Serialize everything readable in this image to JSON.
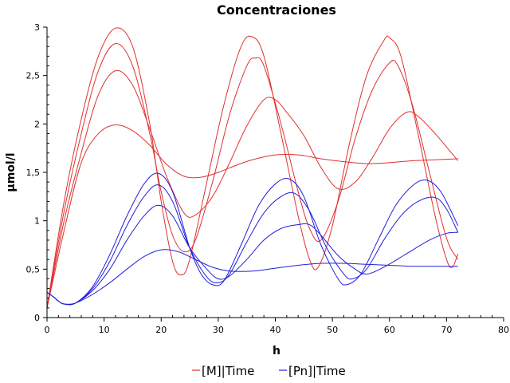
{
  "chart_data": {
    "type": "line",
    "title": "Concentraciones",
    "xlabel": "h",
    "ylabel": "µmol/l",
    "xlim": [
      0,
      80
    ],
    "ylim": [
      0,
      3
    ],
    "x_ticks": [
      {
        "value": 0,
        "label": "0"
      },
      {
        "value": 10,
        "label": "10"
      },
      {
        "value": 20,
        "label": "20"
      },
      {
        "value": 30,
        "label": "30"
      },
      {
        "value": 40,
        "label": "40"
      },
      {
        "value": 50,
        "label": "50"
      },
      {
        "value": 60,
        "label": "60"
      },
      {
        "value": 70,
        "label": "70"
      },
      {
        "value": 80,
        "label": "80"
      }
    ],
    "y_ticks": [
      {
        "value": 0,
        "label": "0"
      },
      {
        "value": 0.5,
        "label": "0,5"
      },
      {
        "value": 1,
        "label": "1"
      },
      {
        "value": 1.5,
        "label": "1,5"
      },
      {
        "value": 2,
        "label": "2"
      },
      {
        "value": 2.5,
        "label": "2,5"
      },
      {
        "value": 3,
        "label": "3"
      }
    ],
    "grid": false,
    "legend_position": "bottom",
    "legend": [
      {
        "label": "[M]|Time",
        "color": "#e03030"
      },
      {
        "label": "[Pn]|Time",
        "color": "#2020dd"
      }
    ],
    "series": [
      {
        "group": "[M]|Time",
        "color": "#e03030",
        "points": [
          [
            0,
            0.1
          ],
          [
            3,
            0.9
          ],
          [
            6,
            1.6
          ],
          [
            9,
            1.9
          ],
          [
            12,
            1.99
          ],
          [
            15,
            1.93
          ],
          [
            18,
            1.78
          ],
          [
            21,
            1.58
          ],
          [
            24,
            1.46
          ],
          [
            27,
            1.45
          ],
          [
            30,
            1.5
          ],
          [
            33,
            1.57
          ],
          [
            36,
            1.63
          ],
          [
            40,
            1.68
          ],
          [
            44,
            1.68
          ],
          [
            48,
            1.64
          ],
          [
            52,
            1.61
          ],
          [
            56,
            1.59
          ],
          [
            60,
            1.6
          ],
          [
            64,
            1.62
          ],
          [
            68,
            1.63
          ],
          [
            72,
            1.64
          ]
        ]
      },
      {
        "group": "[M]|Time",
        "color": "#e03030",
        "points": [
          [
            0,
            0.1
          ],
          [
            3,
            1.0
          ],
          [
            6,
            1.7
          ],
          [
            9,
            2.3
          ],
          [
            12,
            2.55
          ],
          [
            15,
            2.4
          ],
          [
            18,
            1.95
          ],
          [
            21,
            1.45
          ],
          [
            24,
            1.08
          ],
          [
            26,
            1.06
          ],
          [
            29,
            1.25
          ],
          [
            32,
            1.6
          ],
          [
            35,
            1.98
          ],
          [
            38,
            2.25
          ],
          [
            40,
            2.25
          ],
          [
            42,
            2.12
          ],
          [
            45,
            1.88
          ],
          [
            48,
            1.55
          ],
          [
            51,
            1.33
          ],
          [
            54,
            1.4
          ],
          [
            57,
            1.65
          ],
          [
            60,
            1.95
          ],
          [
            63,
            2.12
          ],
          [
            65,
            2.08
          ],
          [
            68,
            1.9
          ],
          [
            72,
            1.62
          ]
        ]
      },
      {
        "group": "[M]|Time",
        "color": "#e03030",
        "points": [
          [
            0,
            0.1
          ],
          [
            3,
            1.1
          ],
          [
            6,
            1.9
          ],
          [
            9,
            2.55
          ],
          [
            12,
            2.83
          ],
          [
            15,
            2.6
          ],
          [
            18,
            1.9
          ],
          [
            20,
            1.3
          ],
          [
            22,
            0.85
          ],
          [
            24,
            0.68
          ],
          [
            26,
            0.8
          ],
          [
            29,
            1.4
          ],
          [
            32,
            2.1
          ],
          [
            35,
            2.6
          ],
          [
            36.5,
            2.68
          ],
          [
            38,
            2.6
          ],
          [
            41,
            2.0
          ],
          [
            44,
            1.3
          ],
          [
            46,
            0.92
          ],
          [
            48,
            0.8
          ],
          [
            51,
            1.2
          ],
          [
            54,
            1.85
          ],
          [
            57,
            2.35
          ],
          [
            60,
            2.63
          ],
          [
            61.5,
            2.6
          ],
          [
            64,
            2.2
          ],
          [
            67,
            1.5
          ],
          [
            70,
            0.82
          ],
          [
            72,
            0.6
          ]
        ]
      },
      {
        "group": "[M]|Time",
        "color": "#e03030",
        "points": [
          [
            0,
            0.1
          ],
          [
            3,
            1.2
          ],
          [
            6,
            2.05
          ],
          [
            9,
            2.7
          ],
          [
            12,
            2.99
          ],
          [
            15,
            2.8
          ],
          [
            18,
            2.0
          ],
          [
            20,
            1.2
          ],
          [
            22,
            0.58
          ],
          [
            23.5,
            0.44
          ],
          [
            25,
            0.6
          ],
          [
            28,
            1.4
          ],
          [
            31,
            2.2
          ],
          [
            34,
            2.8
          ],
          [
            36,
            2.9
          ],
          [
            38,
            2.7
          ],
          [
            41,
            1.9
          ],
          [
            44,
            1.05
          ],
          [
            46,
            0.6
          ],
          [
            47.5,
            0.52
          ],
          [
            50,
            0.95
          ],
          [
            53,
            1.8
          ],
          [
            56,
            2.5
          ],
          [
            59,
            2.86
          ],
          [
            60,
            2.89
          ],
          [
            62,
            2.7
          ],
          [
            65,
            1.9
          ],
          [
            68,
            1.05
          ],
          [
            70,
            0.6
          ],
          [
            71,
            0.52
          ],
          [
            72,
            0.66
          ]
        ]
      },
      {
        "group": "[Pn]|Time",
        "color": "#2020dd",
        "points": [
          [
            0,
            0.26
          ],
          [
            1,
            0.22
          ],
          [
            2,
            0.17
          ],
          [
            3,
            0.14
          ],
          [
            5,
            0.15
          ],
          [
            8,
            0.24
          ],
          [
            11,
            0.36
          ],
          [
            14,
            0.5
          ],
          [
            17,
            0.63
          ],
          [
            20,
            0.7
          ],
          [
            23,
            0.68
          ],
          [
            26,
            0.6
          ],
          [
            29,
            0.52
          ],
          [
            32,
            0.48
          ],
          [
            36,
            0.48
          ],
          [
            40,
            0.51
          ],
          [
            44,
            0.54
          ],
          [
            48,
            0.56
          ],
          [
            52,
            0.56
          ],
          [
            56,
            0.55
          ],
          [
            60,
            0.54
          ],
          [
            64,
            0.53
          ],
          [
            68,
            0.53
          ],
          [
            72,
            0.53
          ]
        ]
      },
      {
        "group": "[Pn]|Time",
        "color": "#2020dd",
        "points": [
          [
            0,
            0.26
          ],
          [
            1,
            0.22
          ],
          [
            2,
            0.17
          ],
          [
            3,
            0.14
          ],
          [
            5,
            0.15
          ],
          [
            8,
            0.28
          ],
          [
            11,
            0.5
          ],
          [
            14,
            0.8
          ],
          [
            17,
            1.05
          ],
          [
            19.5,
            1.16
          ],
          [
            22,
            1.05
          ],
          [
            25,
            0.72
          ],
          [
            28,
            0.5
          ],
          [
            30,
            0.4
          ],
          [
            32,
            0.43
          ],
          [
            35,
            0.6
          ],
          [
            38,
            0.8
          ],
          [
            41,
            0.92
          ],
          [
            44,
            0.96
          ],
          [
            46,
            0.96
          ],
          [
            48,
            0.85
          ],
          [
            51,
            0.64
          ],
          [
            54,
            0.5
          ],
          [
            56,
            0.45
          ],
          [
            59,
            0.52
          ],
          [
            63,
            0.66
          ],
          [
            67,
            0.8
          ],
          [
            70,
            0.87
          ],
          [
            72,
            0.88
          ]
        ]
      },
      {
        "group": "[Pn]|Time",
        "color": "#2020dd",
        "points": [
          [
            0,
            0.26
          ],
          [
            1,
            0.22
          ],
          [
            2,
            0.17
          ],
          [
            3,
            0.14
          ],
          [
            5,
            0.15
          ],
          [
            8,
            0.3
          ],
          [
            11,
            0.58
          ],
          [
            14,
            0.95
          ],
          [
            17,
            1.25
          ],
          [
            19.5,
            1.37
          ],
          [
            22,
            1.2
          ],
          [
            25,
            0.72
          ],
          [
            28,
            0.42
          ],
          [
            30,
            0.36
          ],
          [
            32,
            0.45
          ],
          [
            35,
            0.78
          ],
          [
            38,
            1.08
          ],
          [
            41,
            1.25
          ],
          [
            43.5,
            1.28
          ],
          [
            46,
            1.1
          ],
          [
            49,
            0.72
          ],
          [
            52,
            0.45
          ],
          [
            53.5,
            0.4
          ],
          [
            56,
            0.5
          ],
          [
            59,
            0.8
          ],
          [
            62,
            1.05
          ],
          [
            65,
            1.2
          ],
          [
            68,
            1.24
          ],
          [
            70,
            1.12
          ],
          [
            72,
            0.88
          ]
        ]
      },
      {
        "group": "[Pn]|Time",
        "color": "#2020dd",
        "points": [
          [
            0,
            0.26
          ],
          [
            1,
            0.22
          ],
          [
            2,
            0.17
          ],
          [
            3,
            0.14
          ],
          [
            5,
            0.15
          ],
          [
            8,
            0.32
          ],
          [
            11,
            0.65
          ],
          [
            14,
            1.05
          ],
          [
            17,
            1.38
          ],
          [
            19.5,
            1.49
          ],
          [
            22,
            1.3
          ],
          [
            25,
            0.72
          ],
          [
            27,
            0.45
          ],
          [
            29,
            0.34
          ],
          [
            31,
            0.38
          ],
          [
            34,
            0.75
          ],
          [
            37,
            1.15
          ],
          [
            40,
            1.38
          ],
          [
            42.5,
            1.43
          ],
          [
            45,
            1.25
          ],
          [
            48,
            0.75
          ],
          [
            51,
            0.4
          ],
          [
            52.5,
            0.34
          ],
          [
            55,
            0.45
          ],
          [
            58,
            0.8
          ],
          [
            61,
            1.15
          ],
          [
            64,
            1.36
          ],
          [
            66.5,
            1.42
          ],
          [
            69,
            1.3
          ],
          [
            72,
            0.95
          ]
        ]
      }
    ]
  }
}
